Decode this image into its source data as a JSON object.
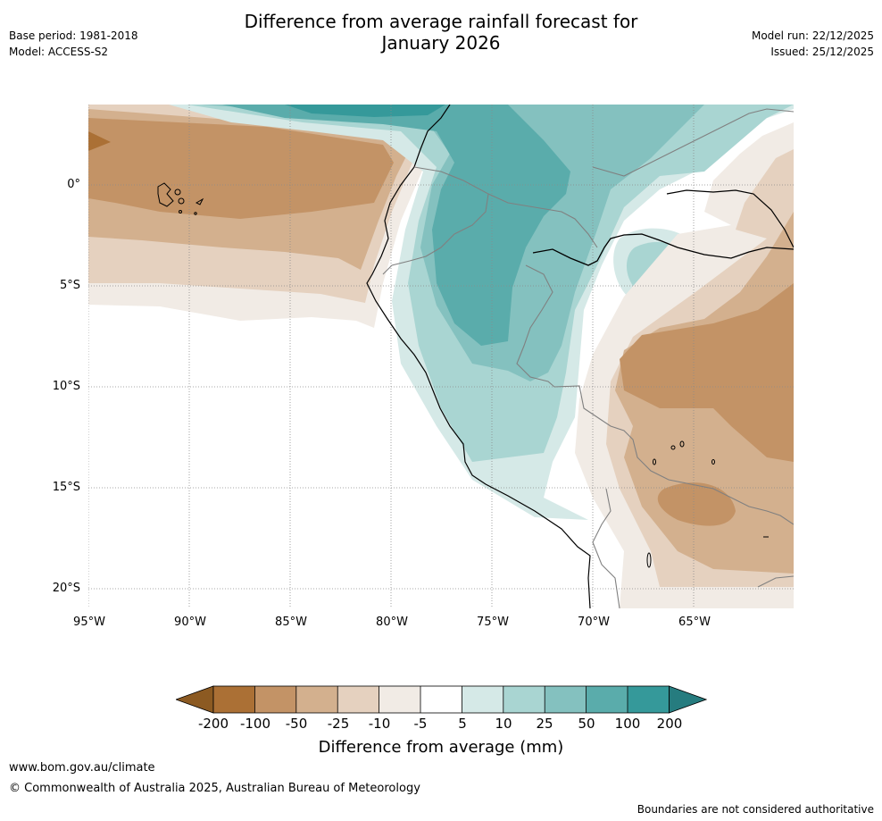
{
  "title_line1": "Difference from average rainfall forecast for",
  "title_line2": "January 2026",
  "meta_left": {
    "base_period": "Base period: 1981-2018",
    "model": "Model: ACCESS-S2"
  },
  "meta_right": {
    "model_run": "Model run: 22/12/2025",
    "issued": "Issued: 25/12/2025"
  },
  "map": {
    "latitude_labels": [
      "0°",
      "5°S",
      "10°S",
      "15°S",
      "20°S"
    ],
    "longitude_labels": [
      "95°W",
      "90°W",
      "85°W",
      "80°W",
      "75°W",
      "70°W",
      "65°W"
    ],
    "colors": {
      "dry_200": "#8c5a22",
      "dry_100": "#ab7035",
      "dry_50": "#c39366",
      "dry_25": "#d3b08e",
      "dry_10": "#e5d1bf",
      "dry_5": "#f1ebe5",
      "neutral": "#ffffff",
      "wet_5": "#d5e9e7",
      "wet_10": "#a9d5d2",
      "wet_25": "#84c1bf",
      "wet_50": "#5aacab",
      "wet_100": "#35999a",
      "wet_200": "#267c7f"
    }
  },
  "colorbar": {
    "labels": [
      "-200",
      "-100",
      "-50",
      "-25",
      "-10",
      "-5",
      "5",
      "10",
      "25",
      "50",
      "100",
      "200"
    ],
    "title": "Difference from average (mm)"
  },
  "footer": {
    "url": "www.bom.gov.au/climate",
    "copyright": "© Commonwealth of Australia 2025, Australian Bureau of Meteorology",
    "disclaimer": "Boundaries are not considered authoritative"
  }
}
